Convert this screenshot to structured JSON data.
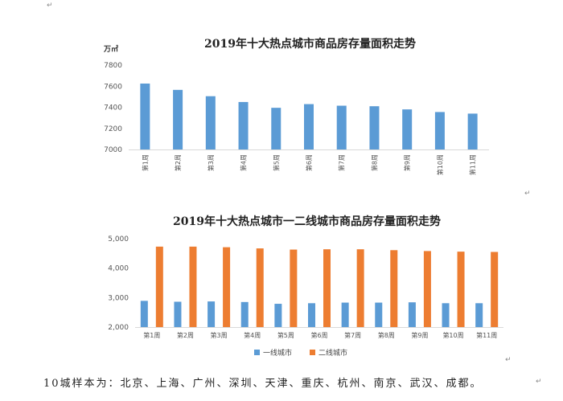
{
  "marks": {
    "top": "↵",
    "mid": "↵",
    "low": "↵",
    "end": "↵"
  },
  "chart_data": [
    {
      "type": "bar",
      "title": "2019年十大热点城市商品房存量面积走势",
      "ylabel": "万㎡",
      "ylim": [
        7000,
        7800
      ],
      "yticks": [
        7000,
        7200,
        7400,
        7600,
        7800
      ],
      "grid": false,
      "categories": [
        "第1周",
        "第2周",
        "第3周",
        "第4周",
        "第5周",
        "第6周",
        "第7周",
        "第8周",
        "第9周",
        "第10周",
        "第11周"
      ],
      "series": [
        {
          "color": "#5b9bd5",
          "values": [
            7625,
            7565,
            7505,
            7450,
            7395,
            7430,
            7415,
            7410,
            7380,
            7355,
            7340
          ]
        }
      ]
    },
    {
      "type": "bar",
      "title": "2019年十大热点城市一二线城市商品房存量面积走势",
      "ylim": [
        2000,
        5000
      ],
      "yticks": [
        "2,000",
        "3,000",
        "4,000",
        "5,000"
      ],
      "grid": false,
      "legend": "bottom",
      "categories": [
        "第1周",
        "第2周",
        "第3周",
        "第4周",
        "第5周",
        "第6周",
        "第7周",
        "第8周",
        "第9周",
        "第10周",
        "第11周"
      ],
      "series": [
        {
          "name": "一线城市",
          "color": "#5b9bd5",
          "values": [
            2890,
            2860,
            2870,
            2850,
            2790,
            2810,
            2830,
            2830,
            2840,
            2810,
            2810
          ]
        },
        {
          "name": "二线城市",
          "color": "#ed7d31",
          "values": [
            4730,
            4730,
            4710,
            4670,
            4630,
            4640,
            4640,
            4610,
            4580,
            4560,
            4550
          ]
        }
      ]
    }
  ],
  "caption": "10城样本为：北京、上海、广州、深圳、天津、重庆、杭州、南京、武汉、成都。"
}
